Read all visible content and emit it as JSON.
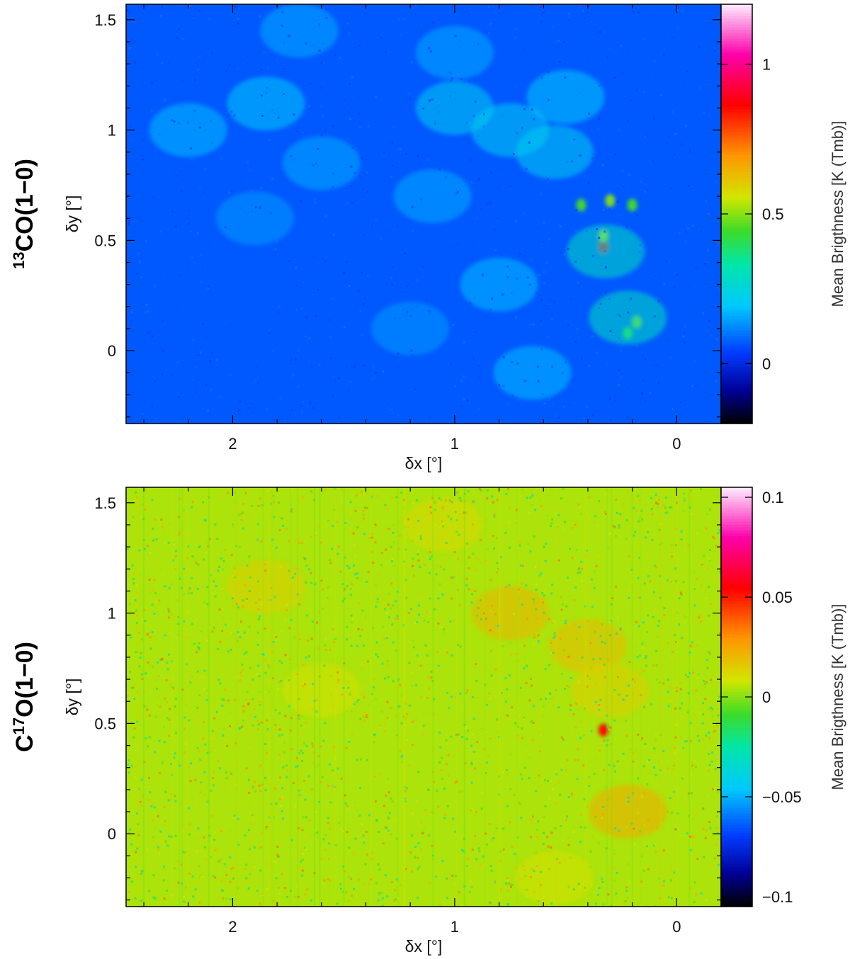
{
  "chart_data": [
    {
      "type": "heatmap",
      "row_label": {
        "pre": "",
        "sup": "13",
        "post": "CO(1−0)"
      },
      "xlabel": "δx  [°]",
      "ylabel": "δy  [°]",
      "xlim": [
        2.48,
        -0.2
      ],
      "ylim": [
        -0.33,
        1.57
      ],
      "x_ticks": [
        {
          "value": 2,
          "label": "2"
        },
        {
          "value": 1,
          "label": "1"
        },
        {
          "value": 0,
          "label": "0"
        }
      ],
      "y_ticks": [
        {
          "value": 1.5,
          "label": "1.5"
        },
        {
          "value": 1,
          "label": "1"
        },
        {
          "value": 0.5,
          "label": "0.5"
        },
        {
          "value": 0,
          "label": "0"
        }
      ],
      "colorbar": {
        "label": "Mean Brigthness  [K  (Tmb)]",
        "range": [
          -0.2,
          1.2
        ],
        "ticks": [
          {
            "value": 1,
            "label": "1"
          },
          {
            "value": 0.5,
            "label": "0.5"
          },
          {
            "value": 0,
            "label": "0"
          }
        ]
      },
      "background_value": 0.07,
      "features": [
        {
          "kind": "peak",
          "x": 0.33,
          "y": 0.47,
          "value": 0.9
        },
        {
          "kind": "peak",
          "x": 0.33,
          "y": 0.52,
          "value": 0.55
        },
        {
          "kind": "peak",
          "x": 0.3,
          "y": 0.68,
          "value": 0.5
        },
        {
          "kind": "peak",
          "x": 0.43,
          "y": 0.66,
          "value": 0.45
        },
        {
          "kind": "peak",
          "x": 0.2,
          "y": 0.66,
          "value": 0.45
        },
        {
          "kind": "peak",
          "x": 0.18,
          "y": 0.13,
          "value": 0.5
        },
        {
          "kind": "peak",
          "x": 0.22,
          "y": 0.08,
          "value": 0.42
        },
        {
          "kind": "cloud",
          "x": 0.32,
          "y": 0.45,
          "value": 0.3
        },
        {
          "kind": "cloud",
          "x": 0.22,
          "y": 0.15,
          "value": 0.3
        },
        {
          "kind": "cloud",
          "x": 0.55,
          "y": 0.9,
          "value": 0.22
        },
        {
          "kind": "cloud",
          "x": 0.75,
          "y": 1.0,
          "value": 0.22
        },
        {
          "kind": "cloud",
          "x": 1.0,
          "y": 1.1,
          "value": 0.22
        },
        {
          "kind": "cloud",
          "x": 0.5,
          "y": 1.15,
          "value": 0.2
        },
        {
          "kind": "cloud",
          "x": 1.85,
          "y": 1.12,
          "value": 0.2
        },
        {
          "kind": "cloud",
          "x": 2.2,
          "y": 1.0,
          "value": 0.18
        },
        {
          "kind": "cloud",
          "x": 1.6,
          "y": 0.85,
          "value": 0.16
        },
        {
          "kind": "cloud",
          "x": 1.9,
          "y": 0.6,
          "value": 0.14
        },
        {
          "kind": "cloud",
          "x": 1.1,
          "y": 0.7,
          "value": 0.16
        },
        {
          "kind": "cloud",
          "x": 0.8,
          "y": 0.3,
          "value": 0.18
        },
        {
          "kind": "cloud",
          "x": 0.65,
          "y": -0.1,
          "value": 0.18
        },
        {
          "kind": "cloud",
          "x": 1.2,
          "y": 0.1,
          "value": 0.14
        },
        {
          "kind": "cloud",
          "x": 1.0,
          "y": 1.35,
          "value": 0.16
        },
        {
          "kind": "cloud",
          "x": 1.7,
          "y": 1.45,
          "value": 0.16
        }
      ]
    },
    {
      "type": "heatmap",
      "row_label": {
        "pre": "C",
        "sup": "17",
        "post": "O(1−0)"
      },
      "xlabel": "δx  [°]",
      "ylabel": "δy  [°]",
      "xlim": [
        2.48,
        -0.2
      ],
      "ylim": [
        -0.33,
        1.57
      ],
      "x_ticks": [
        {
          "value": 2,
          "label": "2"
        },
        {
          "value": 1,
          "label": "1"
        },
        {
          "value": 0,
          "label": "0"
        }
      ],
      "y_ticks": [
        {
          "value": 1.5,
          "label": "1.5"
        },
        {
          "value": 1,
          "label": "1"
        },
        {
          "value": 0.5,
          "label": "0.5"
        },
        {
          "value": 0,
          "label": "0"
        }
      ],
      "colorbar": {
        "label": "Mean Brigthness  [K  (Tmb)]",
        "range": [
          -0.105,
          0.105
        ],
        "ticks": [
          {
            "value": 0.1,
            "label": "0.1"
          },
          {
            "value": 0.05,
            "label": "0.05"
          },
          {
            "value": 0,
            "label": "0"
          },
          {
            "value": -0.05,
            "label": "−0.05"
          },
          {
            "value": -0.1,
            "label": "−0.1"
          }
        ]
      },
      "background_value": 0.004,
      "features": [
        {
          "kind": "peak",
          "x": 0.33,
          "y": 0.47,
          "value": 0.055
        },
        {
          "kind": "cloud",
          "x": 0.75,
          "y": 1.0,
          "value": 0.022
        },
        {
          "kind": "cloud",
          "x": 0.4,
          "y": 0.85,
          "value": 0.02
        },
        {
          "kind": "cloud",
          "x": 0.22,
          "y": 0.1,
          "value": 0.025
        },
        {
          "kind": "cloud",
          "x": 1.85,
          "y": 1.12,
          "value": 0.015
        },
        {
          "kind": "cloud",
          "x": 1.05,
          "y": 1.4,
          "value": 0.012
        },
        {
          "kind": "cloud",
          "x": 0.3,
          "y": 0.65,
          "value": 0.015
        },
        {
          "kind": "cloud",
          "x": 1.6,
          "y": 0.65,
          "value": 0.01
        },
        {
          "kind": "cloud",
          "x": 0.55,
          "y": -0.2,
          "value": 0.01
        }
      ]
    }
  ]
}
